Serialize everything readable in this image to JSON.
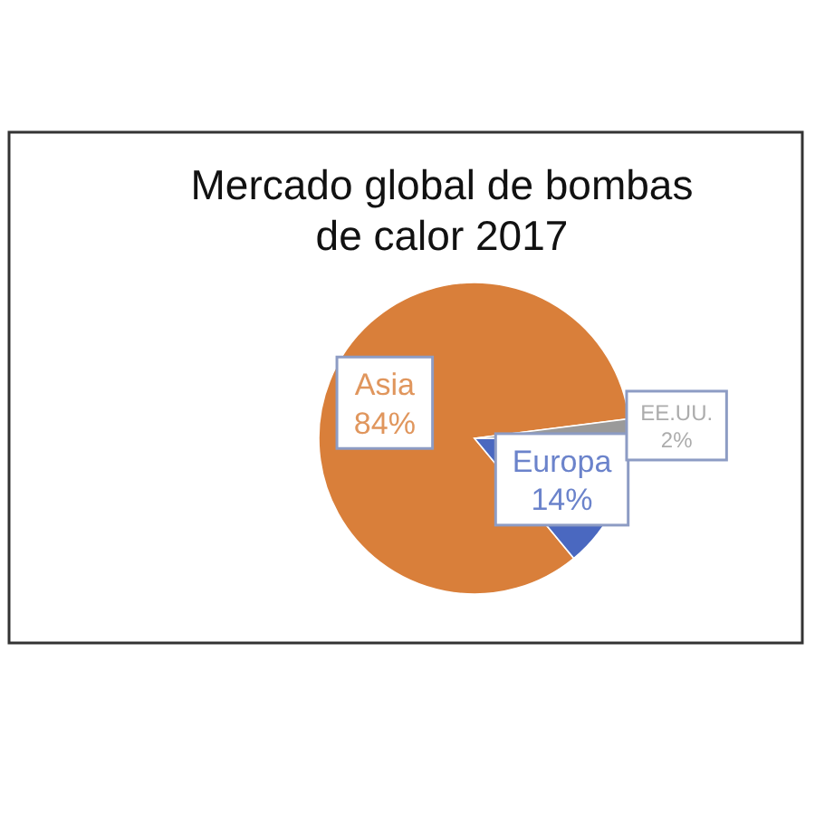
{
  "chart_data": {
    "type": "pie",
    "title": "Mercado global de bombas de calor 2017",
    "categories": [
      "Asia",
      "Europa",
      "EE.UU."
    ],
    "values": [
      84,
      14,
      2
    ],
    "colors": [
      "#d97f3a",
      "#4a68c0",
      "#9a9a9a"
    ],
    "value_labels": [
      "84%",
      "14%",
      "2%"
    ]
  }
}
